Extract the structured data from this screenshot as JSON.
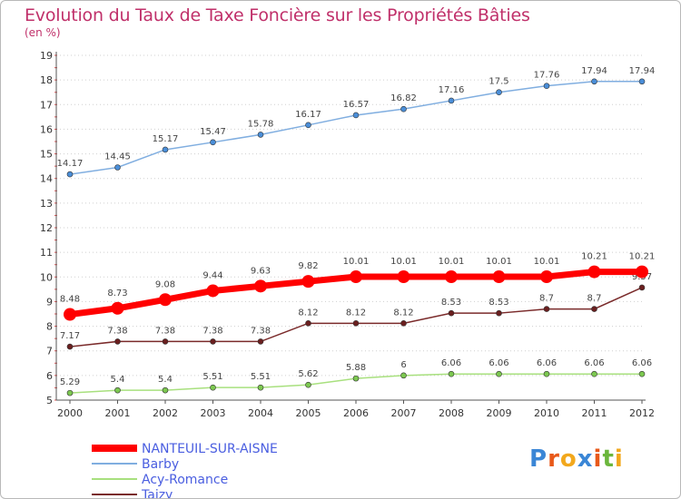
{
  "title": "Evolution du Taux de Taxe Foncière sur les Propriétés Bâties",
  "unit_label": "(en %)",
  "logo": {
    "text": "Proxiti",
    "colors": [
      "#3a86d6",
      "#e8591a",
      "#f2a81d",
      "#3a86d6",
      "#e8591a",
      "#6bb63c",
      "#f2a81d"
    ]
  },
  "chart_data": {
    "type": "line",
    "title": "Evolution du Taux de Taxe Foncière sur les Propriétés Bâties",
    "ylabel": "(en %)",
    "xlabel": "",
    "categories": [
      "2000",
      "2001",
      "2002",
      "2003",
      "2004",
      "2005",
      "2006",
      "2007",
      "2008",
      "2009",
      "2010",
      "2011",
      "2012"
    ],
    "yticks": [
      "5",
      "6",
      "7",
      "8",
      "9",
      "10",
      "11",
      "12",
      "13",
      "14",
      "15",
      "16",
      "17",
      "18",
      "19"
    ],
    "ylim": [
      5,
      19
    ],
    "grid": "horizontal dotted",
    "legend_position": "bottom-left",
    "series": [
      {
        "name": "NANTEUIL-SUR-AISNE",
        "color": "#ff0000",
        "thick": true,
        "values": [
          8.48,
          8.73,
          9.08,
          9.44,
          9.63,
          9.82,
          10.01,
          10.01,
          10.01,
          10.01,
          10.01,
          10.21,
          10.21
        ],
        "labels": [
          "8.48",
          "8.73",
          "9.08",
          "9.44",
          "9.63",
          "9.82",
          "10.01",
          "10.01",
          "10.01",
          "10.01",
          "10.01",
          "10.21",
          "10.21"
        ]
      },
      {
        "name": "Barby",
        "color": "#80aee0",
        "marker": "#4a8ed8",
        "values": [
          14.17,
          14.45,
          15.17,
          15.47,
          15.78,
          16.17,
          16.57,
          16.82,
          17.16,
          17.5,
          17.76,
          17.94,
          17.94
        ],
        "labels": [
          "14.17",
          "14.45",
          "15.17",
          "15.47",
          "15.78",
          "16.17",
          "16.57",
          "16.82",
          "17.16",
          "17.5",
          "17.76",
          "17.94",
          "17.94"
        ]
      },
      {
        "name": "Acy-Romance",
        "color": "#a8e07e",
        "marker": "#7cc850",
        "values": [
          5.29,
          5.4,
          5.4,
          5.51,
          5.51,
          5.62,
          5.88,
          6.0,
          6.06,
          6.06,
          6.06,
          6.06,
          6.06
        ],
        "labels": [
          "5.29",
          "5.4",
          "5.4",
          "5.51",
          "5.51",
          "5.62",
          "5.88",
          "6",
          "6.06",
          "6.06",
          "6.06",
          "6.06",
          "6.06"
        ]
      },
      {
        "name": "Taizy",
        "color": "#7a2a2a",
        "marker": "#6a1f1f",
        "values": [
          7.17,
          7.38,
          7.38,
          7.38,
          7.38,
          8.12,
          8.12,
          8.12,
          8.53,
          8.53,
          8.7,
          8.7,
          9.57
        ],
        "labels": [
          "7.17",
          "7.38",
          "7.38",
          "7.38",
          "7.38",
          "8.12",
          "8.12",
          "8.12",
          "8.53",
          "8.53",
          "8.7",
          "8.7",
          "9.57"
        ]
      }
    ]
  }
}
